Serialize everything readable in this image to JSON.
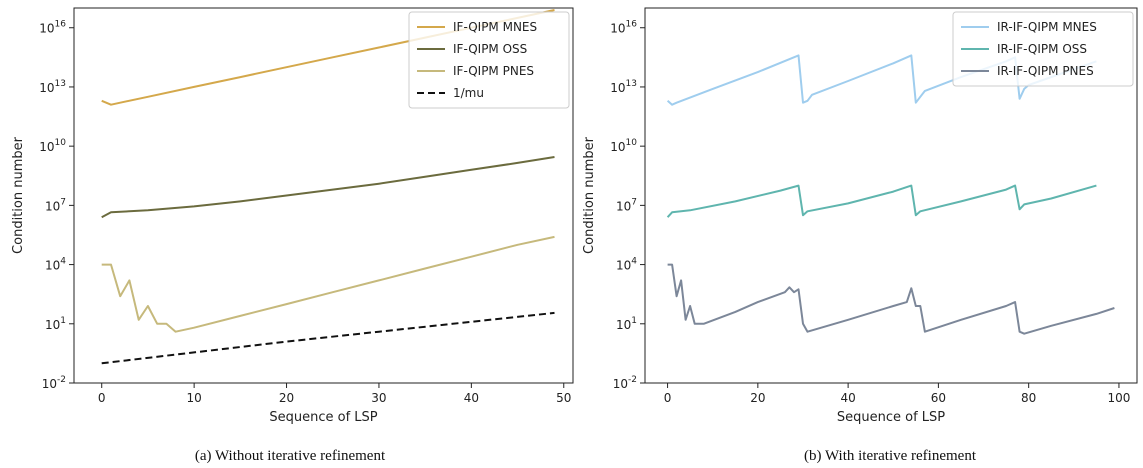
{
  "chart_data": [
    {
      "type": "line",
      "caption": "(a) Without iterative refinement",
      "xlabel": "Sequence of LSP",
      "ylabel": "Condition number",
      "yscale": "log",
      "xlim": [
        -3,
        51
      ],
      "ylim_exp": [
        -2,
        17
      ],
      "x_ticks": [
        0,
        10,
        20,
        30,
        40,
        50
      ],
      "y_ticks": [
        {
          "base": "10",
          "exp": "16",
          "value": 16
        },
        {
          "base": "10",
          "exp": "13",
          "value": 13
        },
        {
          "base": "10",
          "exp": "10",
          "value": 10
        },
        {
          "base": "10",
          "exp": "7",
          "value": 7
        },
        {
          "base": "10",
          "exp": "4",
          "value": 4
        },
        {
          "base": "10",
          "exp": "1",
          "value": 1
        },
        {
          "base": "10",
          "exp": "-2",
          "value": -2
        }
      ],
      "grid": false,
      "legend_position": "top-right",
      "series": [
        {
          "name": "IF-QIPM MNES",
          "color": "#d4a84b",
          "dash": "solid",
          "points": [
            [
              0,
              12.3
            ],
            [
              1,
              12.1
            ],
            [
              2,
              12.2
            ],
            [
              5,
              12.5
            ],
            [
              10,
              13.0
            ],
            [
              15,
              13.5
            ],
            [
              20,
              14.0
            ],
            [
              25,
              14.5
            ],
            [
              30,
              15.0
            ],
            [
              35,
              15.5
            ],
            [
              40,
              16.0
            ],
            [
              45,
              16.5
            ],
            [
              49,
              16.9
            ]
          ]
        },
        {
          "name": "IF-QIPM OSS",
          "color": "#6b6b3e",
          "dash": "solid",
          "points": [
            [
              0,
              6.4
            ],
            [
              1,
              6.65
            ],
            [
              5,
              6.75
            ],
            [
              10,
              6.95
            ],
            [
              15,
              7.2
            ],
            [
              20,
              7.5
            ],
            [
              25,
              7.8
            ],
            [
              30,
              8.1
            ],
            [
              35,
              8.45
            ],
            [
              40,
              8.8
            ],
            [
              45,
              9.15
            ],
            [
              49,
              9.45
            ]
          ]
        },
        {
          "name": "IF-QIPM PNES",
          "color": "#c6b97c",
          "dash": "solid",
          "points": [
            [
              0,
              4.0
            ],
            [
              1,
              4.0
            ],
            [
              2,
              2.4
            ],
            [
              3,
              3.2
            ],
            [
              4,
              1.2
            ],
            [
              5,
              1.9
            ],
            [
              6,
              1.0
            ],
            [
              7,
              1.0
            ],
            [
              8,
              0.6
            ],
            [
              10,
              0.8
            ],
            [
              15,
              1.4
            ],
            [
              20,
              2.0
            ],
            [
              25,
              2.6
            ],
            [
              30,
              3.2
            ],
            [
              35,
              3.8
            ],
            [
              40,
              4.4
            ],
            [
              45,
              5.0
            ],
            [
              49,
              5.4
            ]
          ]
        },
        {
          "name": "1/mu",
          "color": "#111111",
          "dash": "dashed",
          "points": [
            [
              0,
              -1.0
            ],
            [
              10,
              -0.45
            ],
            [
              20,
              0.1
            ],
            [
              30,
              0.6
            ],
            [
              40,
              1.1
            ],
            [
              49,
              1.55
            ]
          ]
        }
      ]
    },
    {
      "type": "line",
      "caption": "(b) With iterative refinement",
      "xlabel": "Sequence of LSP",
      "ylabel": "Condition number",
      "yscale": "log",
      "xlim": [
        -5,
        104
      ],
      "ylim_exp": [
        -2,
        17
      ],
      "x_ticks": [
        0,
        20,
        40,
        60,
        80,
        100
      ],
      "y_ticks": [
        {
          "base": "10",
          "exp": "16",
          "value": 16
        },
        {
          "base": "10",
          "exp": "13",
          "value": 13
        },
        {
          "base": "10",
          "exp": "10",
          "value": 10
        },
        {
          "base": "10",
          "exp": "7",
          "value": 7
        },
        {
          "base": "10",
          "exp": "4",
          "value": 4
        },
        {
          "base": "10",
          "exp": "1",
          "value": 1
        },
        {
          "base": "10",
          "exp": "-2",
          "value": -2
        }
      ],
      "grid": false,
      "legend_position": "top-right",
      "series": [
        {
          "name": "IR-IF-QIPM MNES",
          "color": "#9fcdee",
          "dash": "solid",
          "points": [
            [
              0,
              12.3
            ],
            [
              1,
              12.1
            ],
            [
              2,
              12.2
            ],
            [
              10,
              12.9
            ],
            [
              20,
              13.75
            ],
            [
              29,
              14.6
            ],
            [
              30,
              12.2
            ],
            [
              31,
              12.3
            ],
            [
              32,
              12.6
            ],
            [
              40,
              13.3
            ],
            [
              50,
              14.2
            ],
            [
              54,
              14.6
            ],
            [
              55,
              12.2
            ],
            [
              56,
              12.5
            ],
            [
              57,
              12.8
            ],
            [
              65,
              13.5
            ],
            [
              75,
              14.3
            ],
            [
              77,
              14.5
            ],
            [
              78,
              12.4
            ],
            [
              79,
              12.9
            ],
            [
              80,
              13.1
            ],
            [
              90,
              13.9
            ],
            [
              95,
              14.3
            ]
          ]
        },
        {
          "name": "IR-IF-QIPM OSS",
          "color": "#5fb5ae",
          "dash": "solid",
          "points": [
            [
              0,
              6.4
            ],
            [
              1,
              6.65
            ],
            [
              5,
              6.75
            ],
            [
              15,
              7.2
            ],
            [
              25,
              7.75
            ],
            [
              29,
              8.0
            ],
            [
              30,
              6.5
            ],
            [
              31,
              6.7
            ],
            [
              40,
              7.1
            ],
            [
              50,
              7.7
            ],
            [
              54,
              8.0
            ],
            [
              55,
              6.5
            ],
            [
              56,
              6.7
            ],
            [
              65,
              7.2
            ],
            [
              75,
              7.8
            ],
            [
              77,
              8.0
            ],
            [
              78,
              6.8
            ],
            [
              79,
              7.05
            ],
            [
              85,
              7.35
            ],
            [
              95,
              8.0
            ]
          ]
        },
        {
          "name": "IR-IF-QIPM PNES",
          "color": "#7c8799",
          "dash": "solid",
          "points": [
            [
              0,
              4.0
            ],
            [
              1,
              4.0
            ],
            [
              2,
              2.4
            ],
            [
              3,
              3.2
            ],
            [
              4,
              1.2
            ],
            [
              5,
              1.9
            ],
            [
              6,
              1.0
            ],
            [
              8,
              1.0
            ],
            [
              15,
              1.6
            ],
            [
              20,
              2.1
            ],
            [
              26,
              2.6
            ],
            [
              27,
              2.85
            ],
            [
              28,
              2.6
            ],
            [
              29,
              2.75
            ],
            [
              30,
              1.0
            ],
            [
              31,
              0.6
            ],
            [
              40,
              1.2
            ],
            [
              50,
              1.9
            ],
            [
              53,
              2.1
            ],
            [
              54,
              2.8
            ],
            [
              55,
              1.9
            ],
            [
              56,
              1.9
            ],
            [
              57,
              0.6
            ],
            [
              65,
              1.2
            ],
            [
              75,
              1.9
            ],
            [
              77,
              2.1
            ],
            [
              78,
              0.6
            ],
            [
              79,
              0.5
            ],
            [
              85,
              0.9
            ],
            [
              95,
              1.5
            ],
            [
              99,
              1.8
            ]
          ]
        }
      ]
    }
  ]
}
